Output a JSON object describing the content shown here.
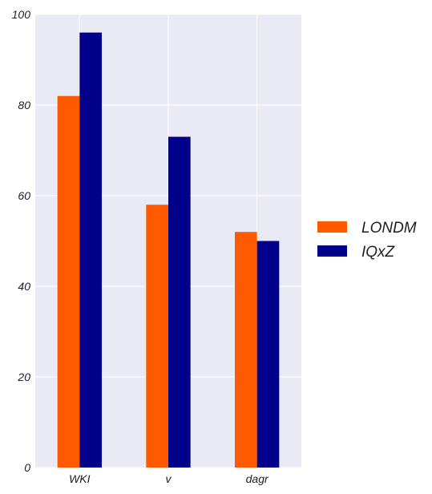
{
  "chart_data": {
    "type": "bar",
    "title": "",
    "xlabel": "",
    "ylabel": "",
    "categories": [
      "WKI",
      "v",
      "dagr"
    ],
    "series": [
      {
        "name": "LONDM",
        "values": [
          82,
          58,
          52
        ],
        "color": "#ff5a00"
      },
      {
        "name": "IQxZ",
        "values": [
          96,
          73,
          50
        ],
        "color": "#00008b"
      }
    ],
    "ylim": [
      0,
      100
    ],
    "yticks": [
      "0",
      "20",
      "40",
      "60",
      "80",
      "100"
    ],
    "grid": true,
    "legend_position": "right",
    "plot_background": "#e9eaf3",
    "grid_color": "#ffffff"
  }
}
